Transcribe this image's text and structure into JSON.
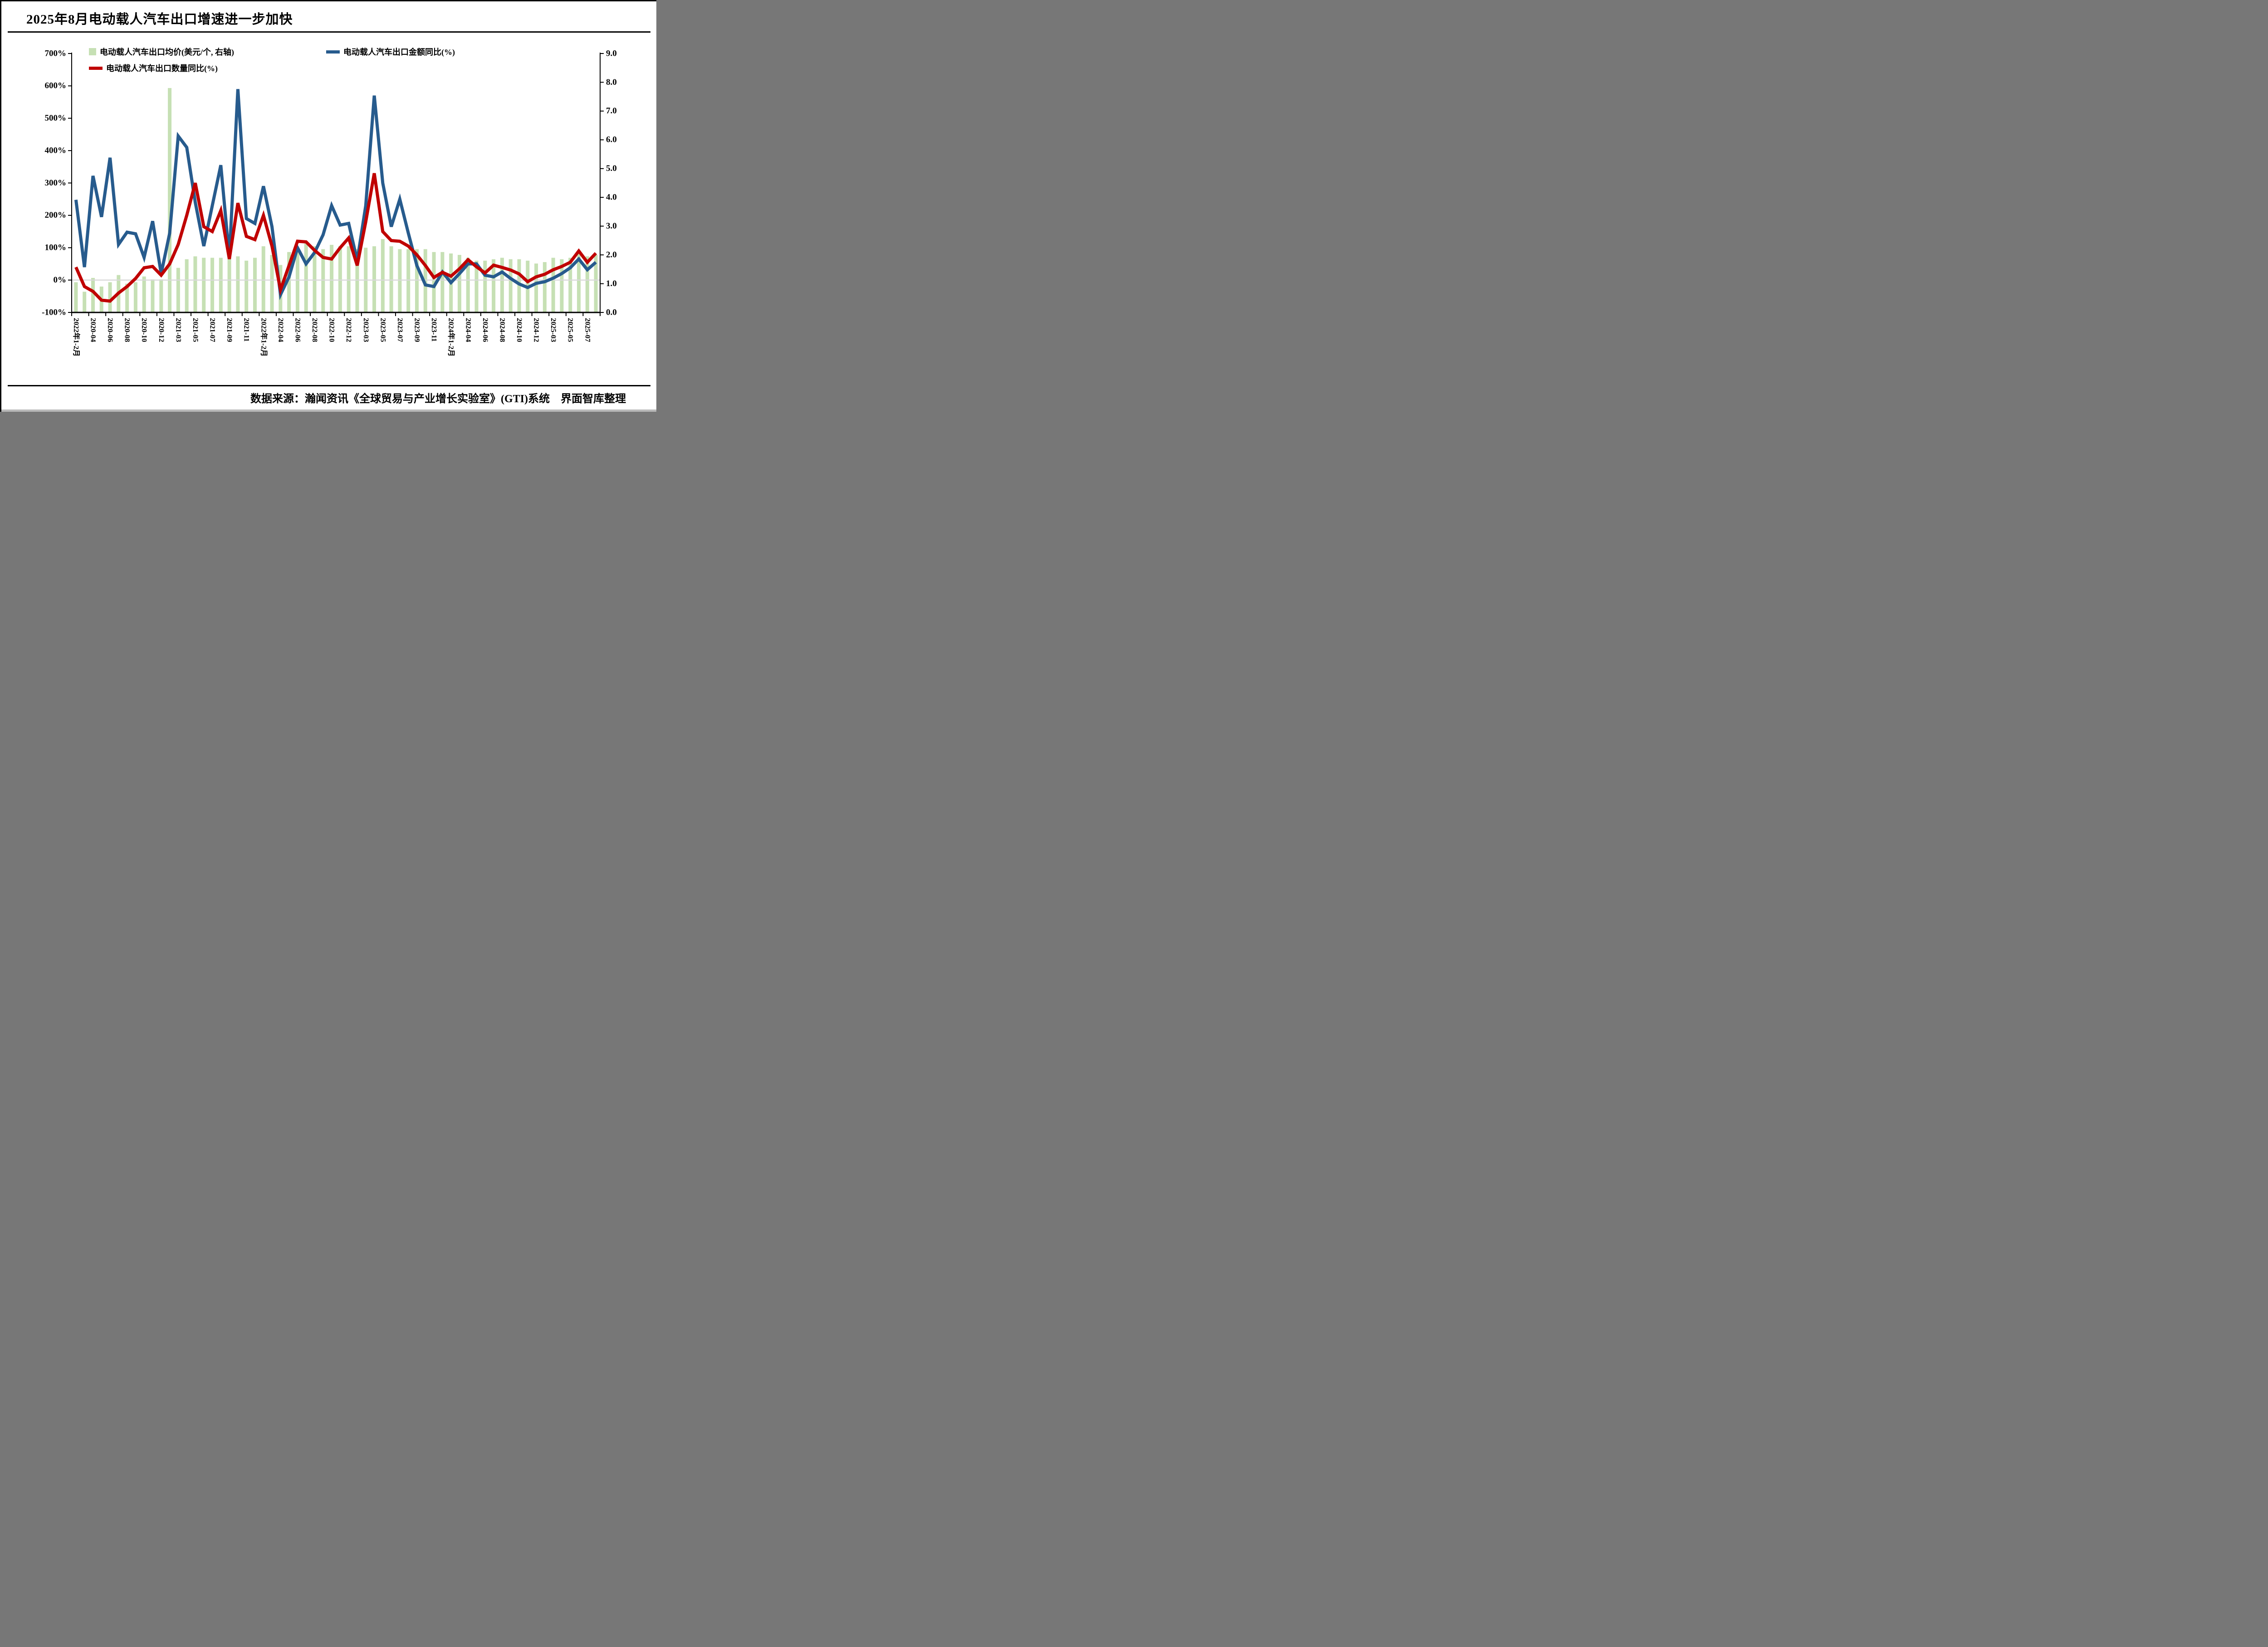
{
  "title": "2025年8月电动载人汽车出口增速进一步加快",
  "source": "数据来源：瀚闻资讯《全球贸易与产业增长实验室》(GTI)系统　界面智库整理",
  "legend": [
    {
      "label": "电动载人汽车出口均价(美元/个, 右轴)",
      "type": "bar",
      "color": "#C6E0B4"
    },
    {
      "label": "电动载人汽车出口金额同比(%)",
      "type": "line",
      "color": "#275B8D"
    },
    {
      "label": "电动载人汽车出口数量同比(%)",
      "type": "line",
      "color": "#C00000"
    }
  ],
  "chart_data": {
    "type": "bar",
    "subtype": "combo-bar-plus-two-lines",
    "n_points": 62,
    "label_every_n_points": 2,
    "x_tick_labels": [
      "2022年1-2月",
      "2020-04",
      "2020-06",
      "2020-08",
      "2020-10",
      "2020-12",
      "2021-03",
      "2021-05",
      "2021-07",
      "2021-09",
      "2021-11",
      "2022年1-2月",
      "2022-04",
      "2022-06",
      "2022-08",
      "2022-10",
      "2022-12",
      "2023-03",
      "2023-05",
      "2023-07",
      "2023-09",
      "2023-11",
      "2024年1-2月",
      "2024-04",
      "2024-06",
      "2024-08",
      "2024-10",
      "2024-12",
      "2025-03",
      "2025-05",
      "2025-07"
    ],
    "left_axis": {
      "min": -100,
      "max": 700,
      "step": 100,
      "tick_labels": [
        "700%",
        "600%",
        "500%",
        "400%",
        "300%",
        "200%",
        "100%",
        "0%",
        "-100%"
      ]
    },
    "right_axis": {
      "min": 0,
      "max": 9,
      "step": 1,
      "tick_labels": [
        "9.0",
        "8.0",
        "7.0",
        "6.0",
        "5.0",
        "4.0",
        "3.0",
        "2.0",
        "1.0",
        "0.0"
      ]
    },
    "zero_line_color": "#D9D9D9",
    "axis_color": "#000000",
    "series": [
      {
        "name": "电动载人汽车出口均价(美元/个, 右轴)",
        "type": "bar",
        "axis": "right",
        "color": "#C6E0B4",
        "values": [
          1.05,
          0.72,
          1.2,
          0.9,
          1.05,
          1.3,
          1.0,
          1.05,
          1.25,
          1.15,
          1.15,
          7.8,
          1.55,
          1.85,
          1.95,
          1.9,
          1.9,
          1.9,
          1.95,
          1.95,
          1.8,
          1.9,
          2.3,
          2.0,
          1.65,
          2.1,
          2.2,
          2.4,
          2.3,
          2.2,
          2.35,
          2.3,
          2.3,
          2.2,
          2.25,
          2.3,
          2.55,
          2.3,
          2.2,
          2.2,
          2.2,
          2.2,
          2.1,
          2.1,
          2.05,
          2.0,
          1.9,
          1.8,
          1.8,
          1.85,
          1.9,
          1.85,
          1.85,
          1.8,
          1.7,
          1.75,
          1.9,
          1.85,
          1.9,
          2.05,
          1.95,
          2.0
        ]
      },
      {
        "name": "电动载人汽车出口金额同比(%)",
        "type": "line",
        "axis": "left",
        "color": "#275B8D",
        "values": [
          248,
          40,
          322,
          195,
          378,
          110,
          148,
          143,
          70,
          182,
          20,
          145,
          445,
          410,
          240,
          105,
          230,
          355,
          70,
          590,
          190,
          175,
          290,
          165,
          -45,
          10,
          100,
          50,
          85,
          140,
          230,
          170,
          175,
          60,
          230,
          570,
          300,
          165,
          250,
          145,
          45,
          -15,
          -20,
          25,
          -8,
          20,
          50,
          50,
          15,
          10,
          25,
          5,
          -12,
          -23,
          -10,
          -5,
          6,
          20,
          38,
          65,
          32,
          55
        ]
      },
      {
        "name": "电动载人汽车出口数量同比(%)",
        "type": "line",
        "axis": "left",
        "color": "#C00000",
        "values": [
          40,
          -20,
          -35,
          -62,
          -65,
          -40,
          -20,
          5,
          38,
          42,
          15,
          50,
          110,
          200,
          300,
          165,
          150,
          215,
          65,
          238,
          135,
          125,
          200,
          105,
          -30,
          45,
          120,
          118,
          92,
          70,
          65,
          100,
          130,
          45,
          180,
          330,
          150,
          122,
          120,
          105,
          78,
          45,
          8,
          24,
          12,
          35,
          63,
          41,
          22,
          46,
          39,
          31,
          19,
          -5,
          10,
          18,
          32,
          42,
          55,
          90,
          55,
          83
        ]
      }
    ]
  }
}
